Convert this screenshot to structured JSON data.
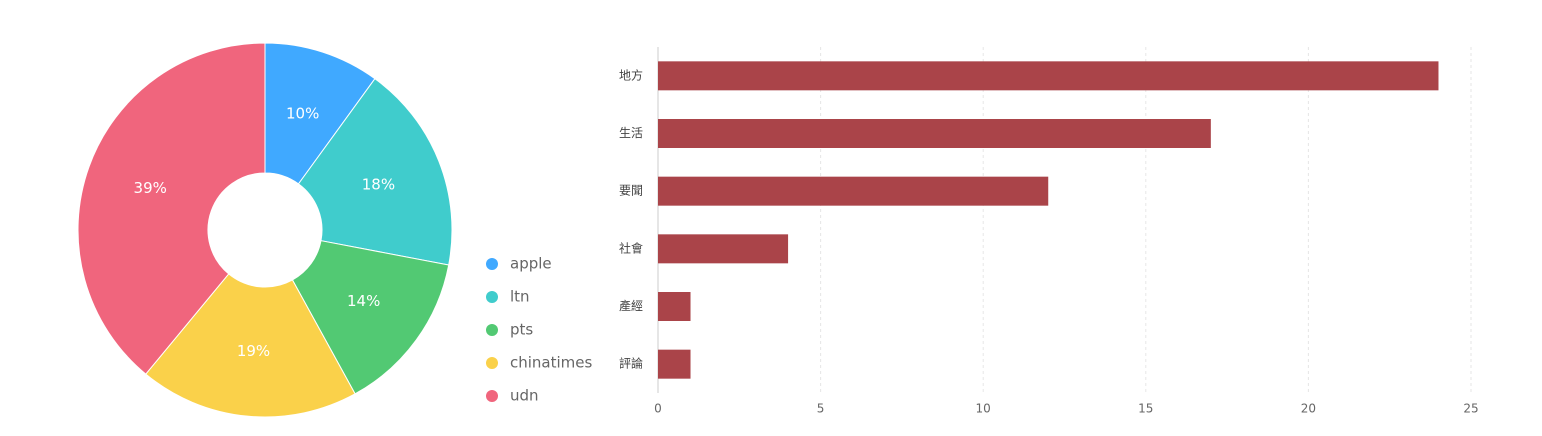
{
  "chart_data": [
    {
      "type": "pie",
      "donut": true,
      "categories": [
        "apple",
        "ltn",
        "pts",
        "chinatimes",
        "udn"
      ],
      "values": [
        10,
        18,
        14,
        19,
        39
      ],
      "value_labels": [
        "10%",
        "18%",
        "14%",
        "19%",
        "39%"
      ],
      "colors": [
        "#40a9ff",
        "#40cccc",
        "#52c973",
        "#fad14a",
        "#f0657d"
      ]
    },
    {
      "type": "hbar",
      "categories": [
        "地方",
        "生活",
        "要聞",
        "社會",
        "產經",
        "評論"
      ],
      "values": [
        24,
        17,
        12,
        4,
        1,
        1
      ],
      "color": "#aa4449",
      "xlim": [
        0,
        25
      ],
      "xticks": [
        0,
        5,
        10,
        15,
        20,
        25
      ],
      "grid": true
    }
  ]
}
